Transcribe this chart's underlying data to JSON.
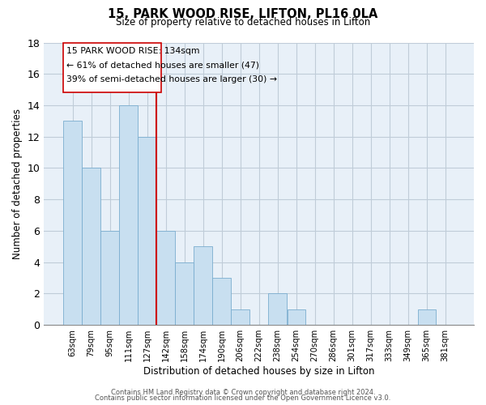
{
  "title": "15, PARK WOOD RISE, LIFTON, PL16 0LA",
  "subtitle": "Size of property relative to detached houses in Lifton",
  "xlabel": "Distribution of detached houses by size in Lifton",
  "ylabel": "Number of detached properties",
  "bar_labels": [
    "63sqm",
    "79sqm",
    "95sqm",
    "111sqm",
    "127sqm",
    "142sqm",
    "158sqm",
    "174sqm",
    "190sqm",
    "206sqm",
    "222sqm",
    "238sqm",
    "254sqm",
    "270sqm",
    "286sqm",
    "301sqm",
    "317sqm",
    "333sqm",
    "349sqm",
    "365sqm",
    "381sqm"
  ],
  "bar_values": [
    13,
    10,
    6,
    14,
    12,
    6,
    4,
    5,
    3,
    1,
    0,
    2,
    1,
    0,
    0,
    0,
    0,
    0,
    0,
    1,
    0
  ],
  "bar_color": "#c8dff0",
  "bar_edge_color": "#7aadcf",
  "bg_color": "#e8f0f8",
  "vline_x": 4.5,
  "vline_color": "#cc0000",
  "annotation_text_line1": "15 PARK WOOD RISE: 134sqm",
  "annotation_text_line2": "← 61% of detached houses are smaller (47)",
  "annotation_text_line3": "39% of semi-detached houses are larger (30) →",
  "ylim": [
    0,
    18
  ],
  "yticks": [
    0,
    2,
    4,
    6,
    8,
    10,
    12,
    14,
    16,
    18
  ],
  "footer_line1": "Contains HM Land Registry data © Crown copyright and database right 2024.",
  "footer_line2": "Contains public sector information licensed under the Open Government Licence v3.0.",
  "background_color": "#ffffff",
  "grid_color": "#c0ccd8"
}
